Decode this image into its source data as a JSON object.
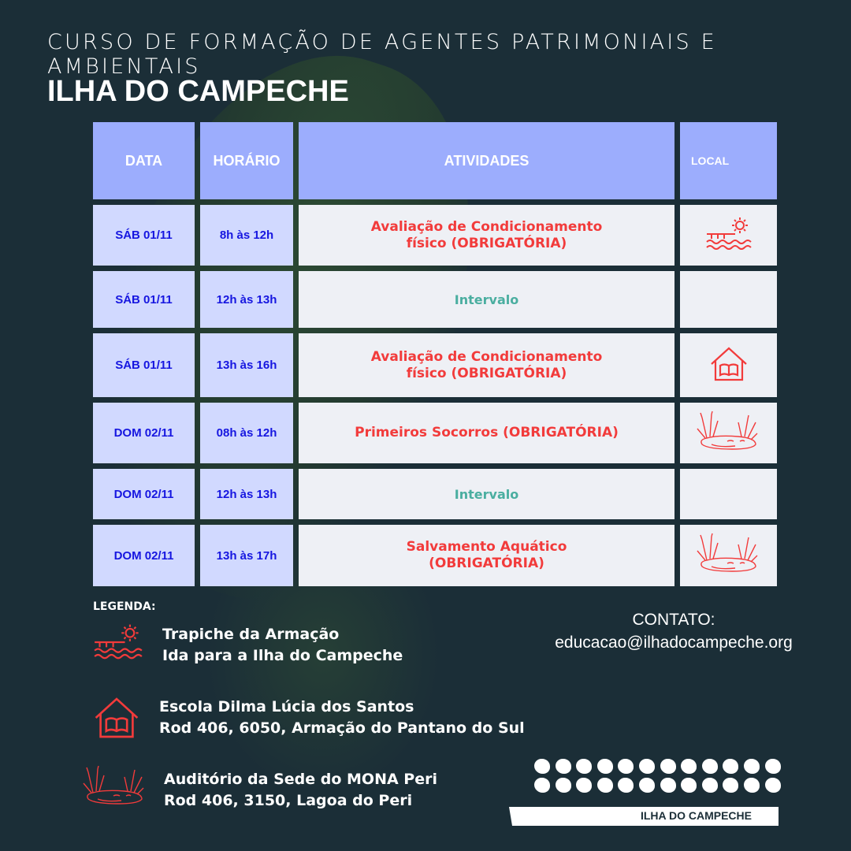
{
  "header": {
    "subtitle": "CURSO DE FORMAÇÃO DE AGENTES PATRIMONIAIS E AMBIENTAIS",
    "title": "ILHA DO CAMPECHE"
  },
  "table": {
    "columns": [
      "DATA",
      "HORÁRIO",
      "ATIVIDADES",
      "LOCAL"
    ],
    "rows": [
      {
        "data": "SÁB 01/11",
        "horario": "8h às 12h",
        "atividade": "Avaliação de Condicionamento físico (OBRIGATÓRIA)",
        "local_icon": "pier-sun-icon"
      },
      {
        "data": "SÁB 01/11",
        "horario": "12h às  13h",
        "atividade": "Intervalo",
        "local_icon": ""
      },
      {
        "data": "SÁB 01/11",
        "horario": "13h às 16h",
        "atividade": "Avaliação de Condicionamento físico (OBRIGATÓRIA)",
        "local_icon": "school-book-icon"
      },
      {
        "data": "DOM 02/11",
        "horario": "08h às 12h",
        "atividade": "Primeiros Socorros (OBRIGATÓRIA)",
        "local_icon": "lagoon-reeds-icon"
      },
      {
        "data": "DOM 02/11",
        "horario": "12h às  13h",
        "atividade": "Intervalo",
        "local_icon": ""
      },
      {
        "data": "DOM 02/11",
        "horario": "13h às 17h",
        "atividade": "Salvamento Aquático (OBRIGATÓRIA)",
        "local_icon": "lagoon-reeds-icon"
      }
    ]
  },
  "legend": {
    "title": "LEGENDA:",
    "items": [
      {
        "icon": "pier-sun-icon",
        "line1": "Trapiche da Armação",
        "line2": "Ida para a Ilha do Campeche"
      },
      {
        "icon": "school-book-icon",
        "line1": "Escola Dilma Lúcia dos Santos",
        "line2": "Rod 406, 6050, Armação do Pantano do Sul"
      },
      {
        "icon": "lagoon-reeds-icon",
        "line1": "Auditório da Sede do MONA Peri",
        "line2": "Rod 406, 3150, Lagoa do Peri"
      }
    ]
  },
  "contact": {
    "label": "CONTATO:",
    "email": "educacao@ilhadocampeche.org"
  },
  "logo": {
    "text": "ILHA DO CAMPECHE"
  },
  "colors": {
    "header": "#9cadfd",
    "date_cell": "#d1d9ff",
    "activity_cell": "#eef0f5",
    "required": "#f23b3b",
    "break": "#4aaea0",
    "date_text": "#1616e0"
  }
}
